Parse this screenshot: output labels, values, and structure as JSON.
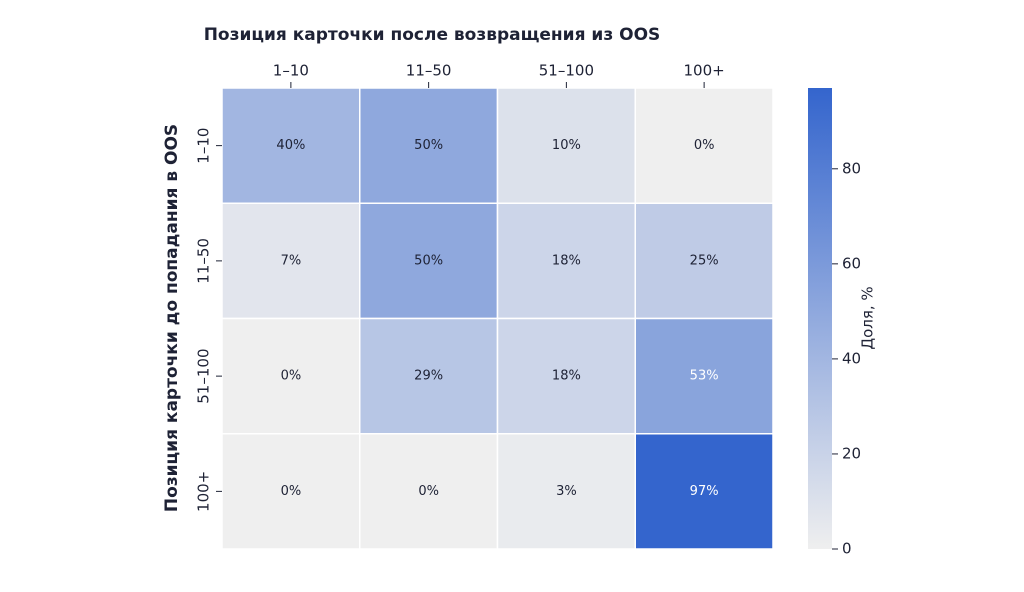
{
  "chart_data": {
    "type": "heatmap",
    "title": "Позиция карточки после возвращения из OOS",
    "y_label": "Позиция карточки до попадания в OOS",
    "x_categories": [
      "1–10",
      "11–50",
      "51–100",
      "100+"
    ],
    "y_categories": [
      "1–10",
      "11–50",
      "51–100",
      "100+"
    ],
    "values": [
      [
        40,
        50,
        10,
        0
      ],
      [
        7,
        50,
        18,
        25
      ],
      [
        0,
        29,
        18,
        53
      ],
      [
        0,
        0,
        3,
        97
      ]
    ],
    "value_labels": [
      [
        "40%",
        "50%",
        "10%",
        "0%"
      ],
      [
        "7%",
        "50%",
        "18%",
        "25%"
      ],
      [
        "0%",
        "29%",
        "18%",
        "53%"
      ],
      [
        "0%",
        "0%",
        "3%",
        "97%"
      ]
    ],
    "colormap": [
      "#efefef",
      "#3465cd"
    ],
    "clim": [
      0,
      97
    ],
    "cticks": [
      0,
      20,
      40,
      60,
      80
    ],
    "colorbar_label": "Доля, %"
  }
}
